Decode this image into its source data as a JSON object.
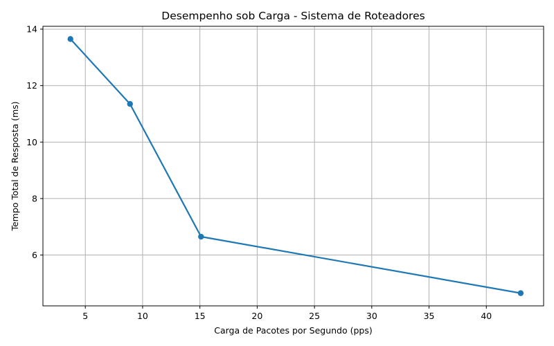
{
  "chart_data": {
    "type": "line",
    "title": "Desempenho sob Carga - Sistema de Roteadores",
    "xlabel": "Carga de Pacotes por Segundo (pps)",
    "ylabel": "Tempo Total de Resposta (ms)",
    "xlim": [
      1.3,
      45.0
    ],
    "ylim": [
      4.2,
      14.1
    ],
    "xticks": [
      5,
      10,
      15,
      20,
      25,
      30,
      35,
      40
    ],
    "yticks": [
      6,
      8,
      10,
      12,
      14
    ],
    "grid": true,
    "series": [
      {
        "color": "#1f77b4",
        "marker": "circle",
        "x": [
          3.7,
          8.9,
          15.1,
          43.0
        ],
        "y": [
          13.65,
          11.35,
          6.65,
          4.65
        ]
      }
    ]
  }
}
